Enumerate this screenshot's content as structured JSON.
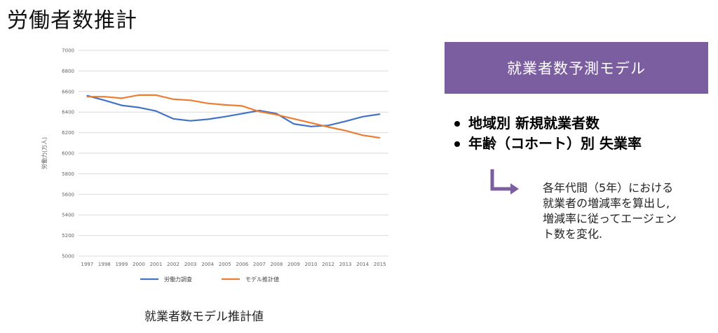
{
  "page": {
    "title": "労働者数推計"
  },
  "chart_caption": "就業者数モデル推計値",
  "model_box": {
    "label": "就業者数予測モデル",
    "color": "#7b5ea0"
  },
  "bullets": [
    "地域別 新規就業者数",
    "年齢（コホート）別 失業率"
  ],
  "note": "各年代間（5年）における\n就業者の増減率を算出し,\n増減率に従ってエージェン\nト数を変化.",
  "icons": {
    "arrow": "arrow-turn-right-icon"
  },
  "chart_data": {
    "type": "line",
    "categories": [
      "1997",
      "1998",
      "1999",
      "2000",
      "2001",
      "2002",
      "2003",
      "2004",
      "2005",
      "2006",
      "2007",
      "2008",
      "2009",
      "2010",
      "2012",
      "2013",
      "2014",
      "2015"
    ],
    "ylabel": "労働力(万人)",
    "ylim": [
      5000,
      7000
    ],
    "yticks": [
      5000,
      5200,
      5400,
      5600,
      5800,
      6000,
      6200,
      6400,
      6600,
      6800,
      7000
    ],
    "grid": true,
    "legend_position": "bottom",
    "series": [
      {
        "name": "労働力調査",
        "color": "#4472c4",
        "values": [
          6560,
          6515,
          6465,
          6445,
          6410,
          6335,
          6315,
          6330,
          6355,
          6385,
          6415,
          6385,
          6285,
          6260,
          6270,
          6310,
          6355,
          6380
        ]
      },
      {
        "name": "モデル推計値",
        "color": "#ed7d31",
        "values": [
          6550,
          6550,
          6535,
          6565,
          6565,
          6525,
          6515,
          6485,
          6470,
          6460,
          6405,
          6375,
          6335,
          6295,
          6255,
          6220,
          6175,
          6150
        ]
      }
    ]
  }
}
